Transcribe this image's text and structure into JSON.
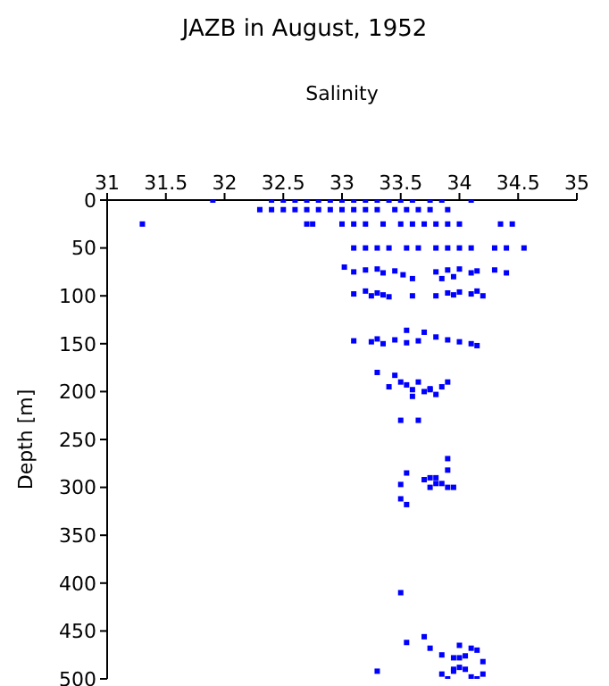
{
  "chart_data": {
    "type": "scatter",
    "title": "JAZB in August, 1952",
    "xlabel": "Salinity",
    "ylabel": "Depth [m]",
    "xlim": [
      31,
      35
    ],
    "ylim": [
      500,
      0
    ],
    "xticks": [
      31,
      31.5,
      32,
      32.5,
      33,
      33.5,
      34,
      34.5,
      35
    ],
    "yticks": [
      0,
      50,
      100,
      150,
      200,
      250,
      300,
      350,
      400,
      450,
      500
    ],
    "grid": false,
    "legend": false,
    "marker": "square",
    "series": [
      {
        "color": "#0000ff",
        "x": [
          31.9,
          32.4,
          32.5,
          32.6,
          32.7,
          32.8,
          32.9,
          33.0,
          33.1,
          33.2,
          33.3,
          33.4,
          33.5,
          33.6,
          33.75,
          33.85,
          34.1,
          32.3,
          32.4,
          32.5,
          32.6,
          32.7,
          32.8,
          32.9,
          33.0,
          33.1,
          33.2,
          33.3,
          33.45,
          33.55,
          33.65,
          33.75,
          33.9,
          31.3,
          32.7,
          32.75,
          33.0,
          33.1,
          33.2,
          33.35,
          33.5,
          33.6,
          33.7,
          33.8,
          33.9,
          34.0,
          34.35,
          34.45,
          33.1,
          33.2,
          33.3,
          33.4,
          33.55,
          33.65,
          33.8,
          33.9,
          34.0,
          34.1,
          34.3,
          34.4,
          34.55,
          33.02,
          33.1,
          33.2,
          33.3,
          33.35,
          33.45,
          33.52,
          33.6,
          33.8,
          33.9,
          33.95,
          34.0,
          34.1,
          34.15,
          34.3,
          34.4,
          33.85,
          33.1,
          33.2,
          33.25,
          33.3,
          33.35,
          33.4,
          33.6,
          33.8,
          33.9,
          33.95,
          34.0,
          34.1,
          34.15,
          34.2,
          33.1,
          33.25,
          33.3,
          33.35,
          33.45,
          33.55,
          33.65,
          33.7,
          33.8,
          33.9,
          34.0,
          34.1,
          34.15,
          33.55,
          33.3,
          33.45,
          33.5,
          33.55,
          33.6,
          33.65,
          33.7,
          33.75,
          33.8,
          33.85,
          33.9,
          33.4,
          33.6,
          33.75,
          33.65,
          33.5,
          33.9,
          33.5,
          33.55,
          33.7,
          33.75,
          33.8,
          33.85,
          33.9,
          33.95,
          33.5,
          33.55,
          33.75,
          33.8,
          33.9,
          33.5,
          33.95,
          34.0,
          34.05,
          34.1,
          34.15,
          34.2,
          34.0,
          33.85,
          33.9,
          33.95,
          34.0,
          33.7,
          33.55,
          33.75,
          33.85,
          34.05,
          34.1,
          34.2,
          33.95,
          33.3,
          34.15
        ],
        "values": [
          0,
          0,
          0,
          0,
          0,
          0,
          0,
          0,
          0,
          0,
          0,
          0,
          0,
          0,
          0,
          0,
          0,
          10,
          10,
          10,
          10,
          10,
          10,
          10,
          10,
          10,
          10,
          10,
          10,
          10,
          10,
          10,
          10,
          25,
          25,
          25,
          25,
          25,
          25,
          25,
          25,
          25,
          25,
          25,
          25,
          25,
          25,
          25,
          50,
          50,
          50,
          50,
          50,
          50,
          50,
          50,
          50,
          50,
          50,
          50,
          50,
          70,
          75,
          73,
          72,
          76,
          74,
          78,
          82,
          75,
          73,
          80,
          72,
          76,
          74,
          73,
          76,
          82,
          98,
          95,
          100,
          97,
          99,
          101,
          100,
          100,
          97,
          99,
          96,
          98,
          95,
          100,
          147,
          148,
          145,
          150,
          146,
          149,
          147,
          138,
          143,
          146,
          148,
          150,
          152,
          136,
          180,
          183,
          190,
          193,
          198,
          190,
          200,
          197,
          203,
          195,
          190,
          195,
          205,
          198,
          230,
          230,
          270,
          297,
          285,
          292,
          290,
          290,
          296,
          300,
          300,
          312,
          318,
          300,
          296,
          282,
          410,
          490,
          478,
          476,
          468,
          470,
          482,
          488,
          495,
          500,
          492,
          465,
          456,
          462,
          468,
          475,
          490,
          498,
          495,
          478,
          492,
          500
        ]
      }
    ]
  }
}
